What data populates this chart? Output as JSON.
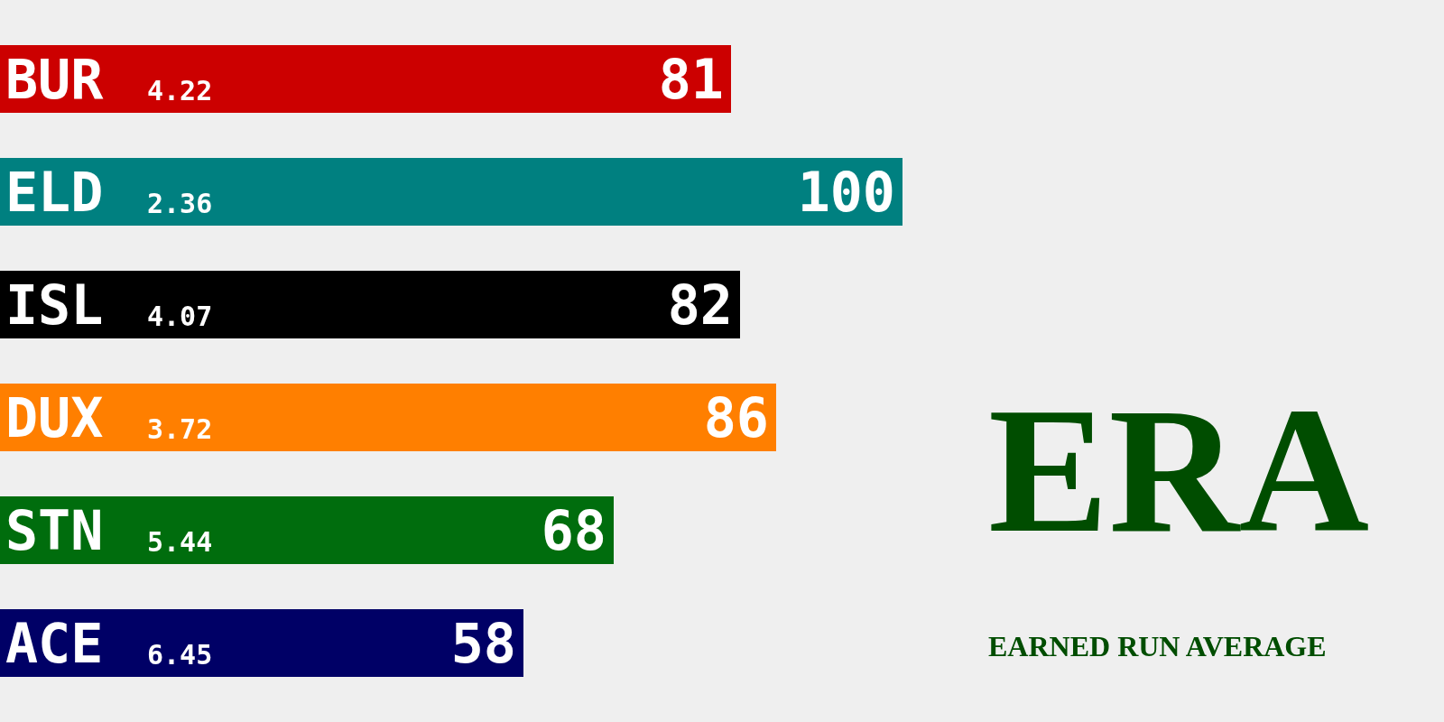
{
  "chart_data": {
    "type": "bar",
    "orientation": "horizontal",
    "title": "ERA",
    "subtitle": "EARNED RUN AVERAGE",
    "categories": [
      "BUR",
      "ELD",
      "ISL",
      "DUX",
      "STN",
      "ACE"
    ],
    "values": [
      81,
      100,
      82,
      86,
      68,
      58
    ],
    "colors": [
      "#cc0000",
      "#008080",
      "#000000",
      "#ff7f00",
      "#006d0d",
      "#000066"
    ],
    "xlim": [
      0,
      100
    ],
    "data_labels": true,
    "tick_labels": "y",
    "grid": false,
    "annotations": [
      "4.22",
      "2.36",
      "4.07",
      "3.72",
      "5.44",
      "6.45"
    ]
  }
}
